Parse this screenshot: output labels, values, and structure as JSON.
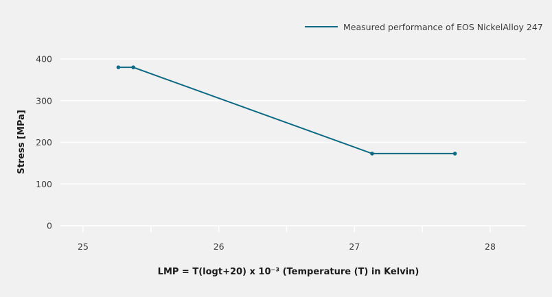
{
  "chart_data": {
    "type": "line",
    "title": "",
    "xlabel": "LMP = T(logt+20) x 10⁻³ (Temperature (T) in Kelvin)",
    "ylabel": "Stress [MPa]",
    "xlim": [
      24.84,
      28.26
    ],
    "ylim": [
      0,
      400
    ],
    "x_ticks": [
      25,
      25.5,
      26,
      26.5,
      27,
      27.5,
      28
    ],
    "x_tick_labels": [
      "25",
      "",
      "26",
      "",
      "27",
      "",
      "28"
    ],
    "y_ticks": [
      0,
      100,
      200,
      300,
      400
    ],
    "y_tick_labels": [
      "0",
      "100",
      "200",
      "300",
      "400"
    ],
    "grid": "horizontal",
    "legend_position": "top-right",
    "series": [
      {
        "name": "Measured performance of EOS NickelAlloy 247",
        "color": "#0e6a84",
        "x": [
          25.26,
          25.37,
          27.13,
          27.74
        ],
        "y": [
          380,
          380,
          173,
          173
        ]
      }
    ]
  },
  "colors": {
    "background": "#f0f1f0",
    "grid": "#ffffff",
    "series": "#0e6a84"
  }
}
